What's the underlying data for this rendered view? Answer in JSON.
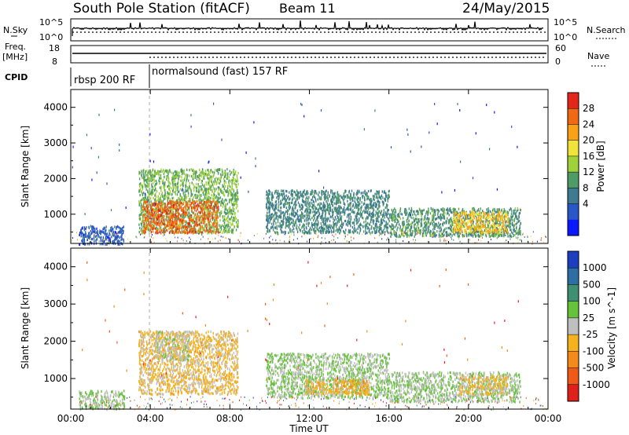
{
  "header": {
    "station": "South Pole Station (fitACF)",
    "beam": "Beam 11",
    "date": "24/May/2015"
  },
  "top_panels": {
    "nsky_label": "N.Sky",
    "nsky_ticks": [
      "10^5",
      "10^0"
    ],
    "nsearch_label": "N.Search",
    "nsearch_ticks": [
      "10^5",
      "10^0"
    ],
    "freq_label": "Freq.",
    "freq_unit": "[MHz]",
    "freq_ticks": [
      "18",
      "8"
    ],
    "nave_label": "Nave",
    "nave_ticks": [
      "60",
      "0"
    ],
    "cpid_label": "CPID",
    "cpid_segments": [
      {
        "label": "rbsp 200 RF",
        "start_h": 0,
        "end_h": 3.9
      },
      {
        "label": "normalsound (fast) 157 RF",
        "start_h": 3.9,
        "end_h": 24
      }
    ]
  },
  "chart_data": [
    {
      "type": "heatmap",
      "panel": "power",
      "ylabel": "Slant Range [km]",
      "xlabel": "Time UT",
      "xticks": [
        "00:00",
        "04:00",
        "08:00",
        "12:00",
        "16:00",
        "20:00",
        "00:00"
      ],
      "xlim_hours": [
        0,
        24
      ],
      "ylim": [
        180,
        4500
      ],
      "yticks": [
        1000,
        2000,
        3000,
        4000
      ],
      "colorbar": {
        "label": "Power [dB]",
        "ticks": [
          "28",
          "24",
          "20",
          "16",
          "12",
          "8",
          "4"
        ],
        "range": [
          0,
          32
        ],
        "colors": [
          "#0a18ff",
          "#2a57c8",
          "#3f7a90",
          "#4f9b66",
          "#9fd23a",
          "#f0e33a",
          "#f9a218",
          "#f06a16",
          "#e3281a"
        ]
      },
      "echo_regions": [
        {
          "t0": 0.4,
          "t1": 2.7,
          "r0": 180,
          "r1": 700,
          "value": 6
        },
        {
          "t0": 3.4,
          "t1": 8.4,
          "r0": 500,
          "r1": 2300,
          "value": 14
        },
        {
          "t0": 3.6,
          "t1": 7.4,
          "r0": 500,
          "r1": 1400,
          "value": 27
        },
        {
          "t0": 9.8,
          "t1": 16.0,
          "r0": 500,
          "r1": 1700,
          "value": 10
        },
        {
          "t0": 16.0,
          "t1": 22.6,
          "r0": 400,
          "r1": 1200,
          "value": 12
        },
        {
          "t0": 19.2,
          "t1": 22.0,
          "r0": 500,
          "r1": 1100,
          "value": 22
        }
      ]
    },
    {
      "type": "heatmap",
      "panel": "velocity",
      "ylabel": "Slant Range [km]",
      "xlabel": "Time UT",
      "xticks": [
        "00:00",
        "04:00",
        "08:00",
        "12:00",
        "16:00",
        "20:00",
        "00:00"
      ],
      "xlim_hours": [
        0,
        24
      ],
      "ylim": [
        180,
        4500
      ],
      "yticks": [
        1000,
        2000,
        3000,
        4000
      ],
      "colorbar": {
        "label": "Velocity [m s^-1]",
        "ticks": [
          "1000",
          "500",
          "100",
          "25",
          "-25",
          "-100",
          "-500",
          "-1000"
        ],
        "range": [
          -1200,
          1200
        ],
        "colors": [
          "#1c3fbf",
          "#2e6fa3",
          "#3f8f72",
          "#66c23a",
          "#bfbfbf",
          "#f6b21c",
          "#f48a1a",
          "#f05a18",
          "#e0201a"
        ]
      },
      "echo_regions": [
        {
          "t0": 0.4,
          "t1": 2.7,
          "r0": 200,
          "r1": 700,
          "value": 150
        },
        {
          "t0": 3.4,
          "t1": 8.4,
          "r0": 600,
          "r1": 2300,
          "value": -200
        },
        {
          "t0": 4.2,
          "t1": 6.0,
          "r0": 1500,
          "r1": 2300,
          "value": 0
        },
        {
          "t0": 9.8,
          "t1": 16.0,
          "r0": 500,
          "r1": 1700,
          "value": 150
        },
        {
          "t0": 11.8,
          "t1": 15.0,
          "r0": 600,
          "r1": 1000,
          "value": -300
        },
        {
          "t0": 16.0,
          "t1": 22.6,
          "r0": 400,
          "r1": 1200,
          "value": 120
        },
        {
          "t0": 19.5,
          "t1": 22.0,
          "r0": 600,
          "r1": 1100,
          "value": -200
        }
      ]
    }
  ]
}
